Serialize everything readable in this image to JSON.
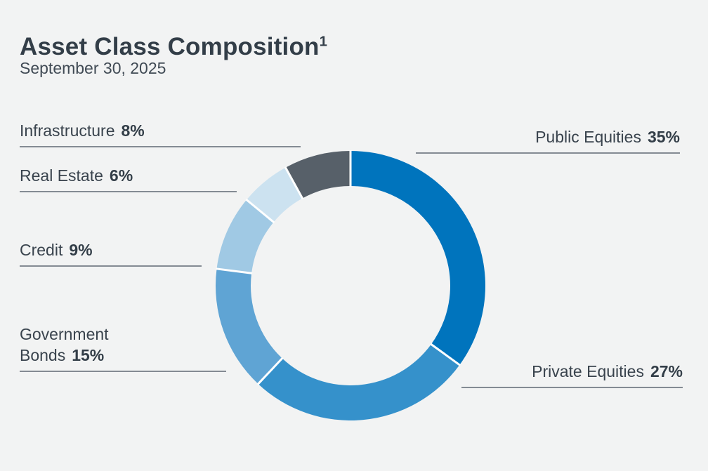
{
  "header": {
    "title": "Asset Class Composition",
    "footnote_marker": "1",
    "subtitle": "September 30, 2025"
  },
  "colors": {
    "background": "#f2f3f3",
    "title_text": "#333e48",
    "label_text": "#39434d",
    "leader_line": "#848b93",
    "segment_separator": "#ffffff"
  },
  "chart_data": {
    "type": "pie",
    "donut": true,
    "title": "Asset Class Composition",
    "subtitle": "September 30, 2025",
    "start_angle_deg": 0,
    "direction": "clockwise",
    "units": "%",
    "segments": [
      {
        "label": "Public Equities",
        "value": 35,
        "color": "#0074bd"
      },
      {
        "label": "Private Equities",
        "value": 27,
        "color": "#3591cb"
      },
      {
        "label": "Government Bonds",
        "value": 15,
        "color": "#5fa4d4"
      },
      {
        "label": "Credit",
        "value": 9,
        "color": "#a0c9e4"
      },
      {
        "label": "Real Estate",
        "value": 6,
        "color": "#cce2f0"
      },
      {
        "label": "Infrastructure",
        "value": 8,
        "color": "#576069"
      }
    ]
  },
  "callouts": {
    "infrastructure": {
      "label": "Infrastructure",
      "value": "8%"
    },
    "real_estate": {
      "label": "Real Estate",
      "value": "6%"
    },
    "credit": {
      "label": "Credit",
      "value": "9%"
    },
    "government_bonds": {
      "label_line1": "Government",
      "label_line2": "Bonds",
      "value": "15%"
    },
    "public_equities": {
      "label": "Public Equities",
      "value": "35%"
    },
    "private_equities": {
      "label": "Private Equities",
      "value": "27%"
    }
  }
}
